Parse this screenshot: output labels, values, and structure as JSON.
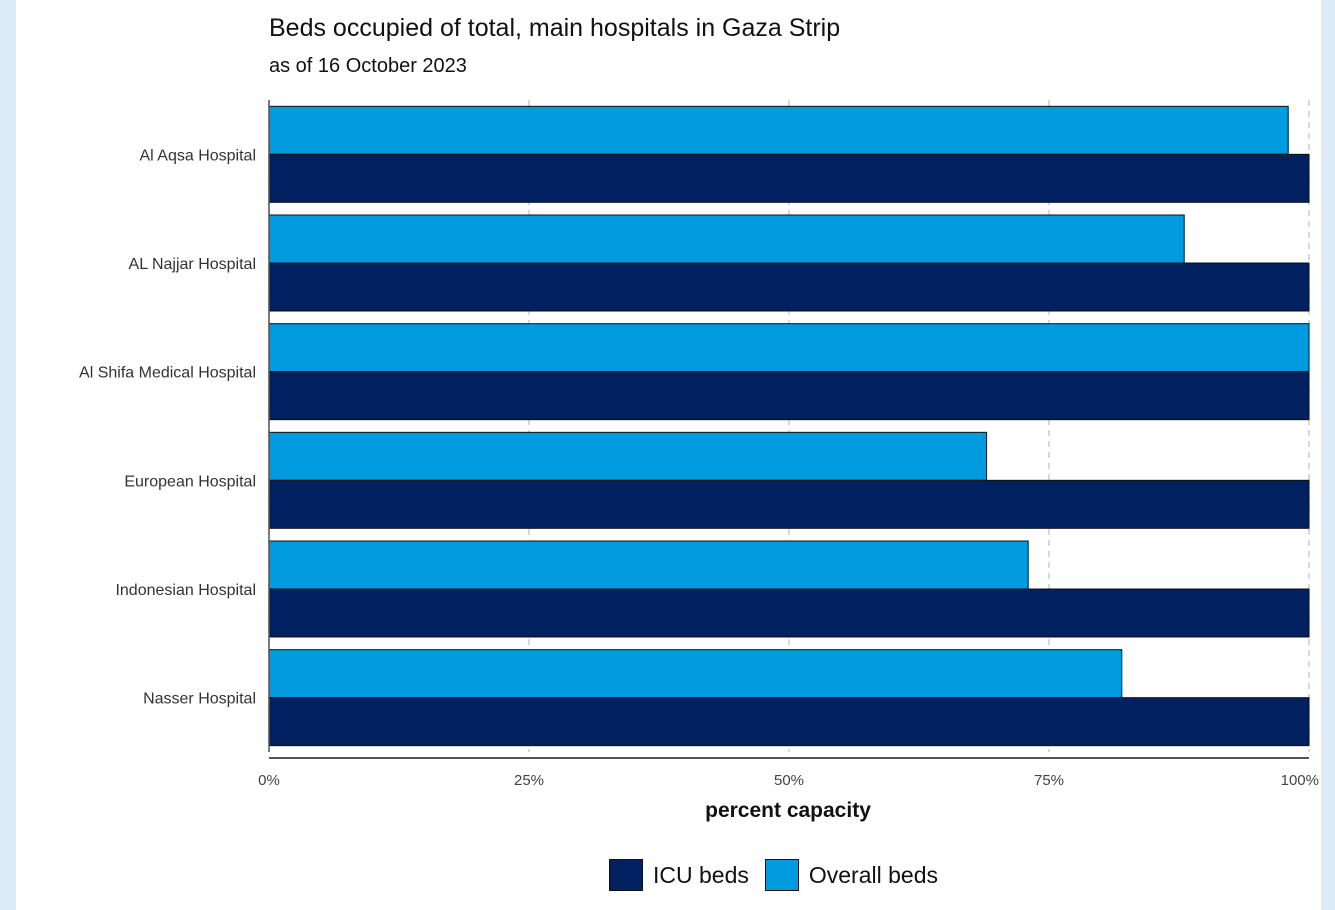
{
  "colors": {
    "icu": "#002060",
    "overall": "#009ADE",
    "grid": "#cccccc",
    "axis": "#555555"
  },
  "chart_data": {
    "type": "bar",
    "orientation": "horizontal",
    "title": "Beds occupied of total, main hospitals in Gaza Strip",
    "subtitle": "as of 16 October 2023",
    "xlabel": "percent capacity",
    "ylabel": "",
    "xlim": [
      0,
      100
    ],
    "x_ticks": [
      "0%",
      "25%",
      "50%",
      "75%",
      "100%"
    ],
    "grid": "vertical dashed",
    "legend_position": "bottom",
    "categories": [
      "Al Aqsa Hospital",
      "AL Najjar Hospital",
      "Al Shifa Medical Hospital",
      "European Hospital",
      "Indonesian Hospital",
      "Nasser Hospital"
    ],
    "series": [
      {
        "name": "Overall beds",
        "values": [
          98,
          88,
          100,
          69,
          73,
          82
        ]
      },
      {
        "name": "ICU beds",
        "values": [
          100,
          100,
          100,
          100,
          100,
          100
        ]
      }
    ]
  },
  "legend": {
    "icu_label": "ICU beds",
    "overall_label": "Overall beds"
  }
}
